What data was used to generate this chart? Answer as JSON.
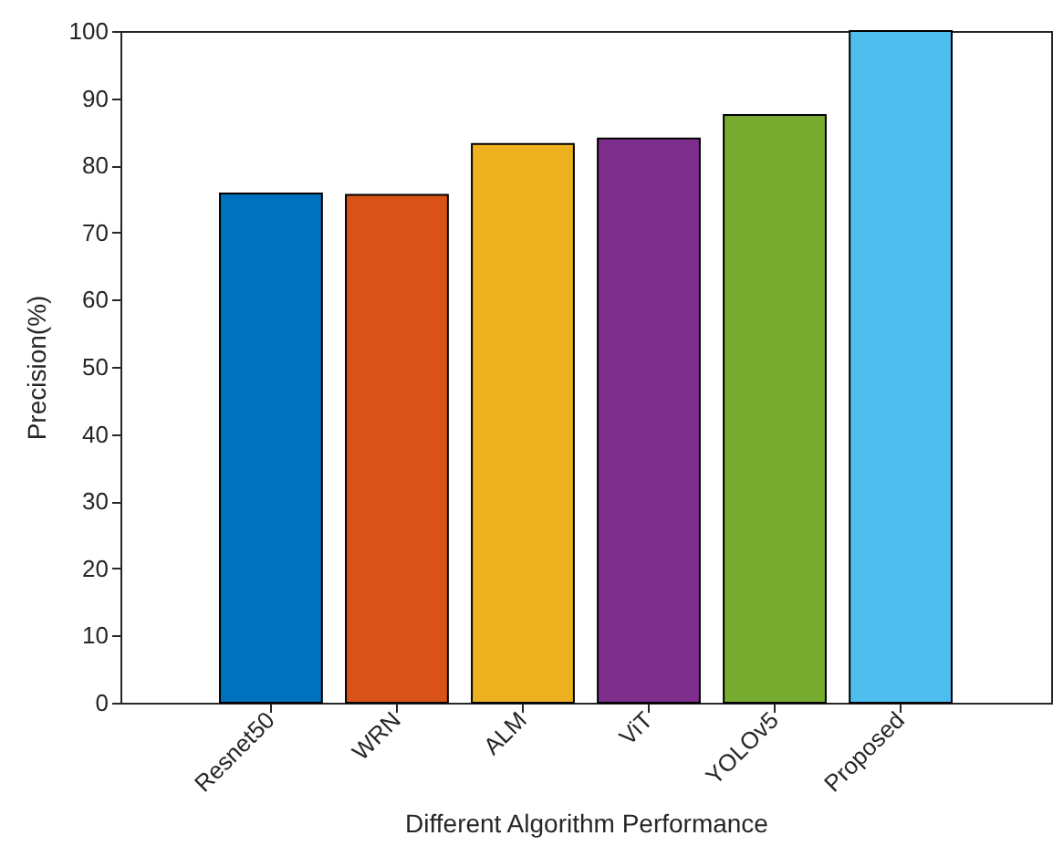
{
  "chart_data": {
    "type": "bar",
    "xlabel": "Different Algorithm Performance",
    "ylabel": "Precision(%)",
    "categories": [
      "Resnet50",
      "WRN",
      "ALM",
      "ViT",
      "YOLOv5",
      "Proposed"
    ],
    "values": [
      75.8,
      75.6,
      83.2,
      84.0,
      87.5,
      100
    ],
    "colors": [
      "#0072bd",
      "#d95319",
      "#edb120",
      "#7e2f8e",
      "#77ac30",
      "#4dbeee"
    ],
    "ylim": [
      0,
      100
    ],
    "yticks": [
      0,
      10,
      20,
      30,
      40,
      50,
      60,
      70,
      80,
      90,
      100
    ],
    "grid": false
  }
}
